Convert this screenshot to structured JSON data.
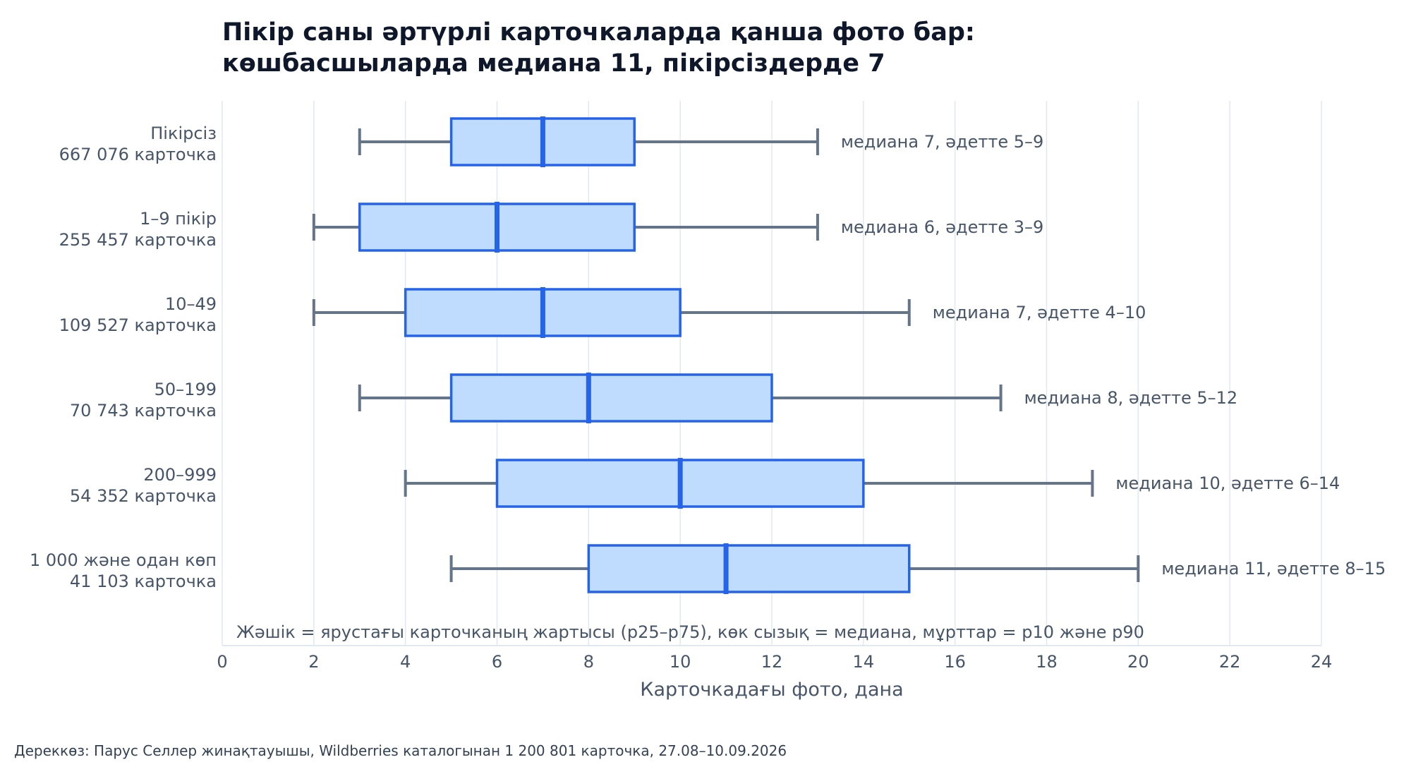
{
  "title_line1": "Пікір саны әртүрлі карточкаларда қанша фото бар:",
  "title_line2": "көшбасшыларда медиана 11, пікірсіздерде 7",
  "source": "Дереккөз: Парус Селлер жинақтауышы, Wildberries каталогынан 1 200 801 карточка, 27.08–10.09.2026",
  "chart_data": {
    "type": "boxplot",
    "orientation": "horizontal",
    "xlabel": "Карточкадағы фото, дана",
    "ylabel": "",
    "xlim": [
      0,
      24
    ],
    "xticks": [
      0,
      2,
      4,
      6,
      8,
      10,
      12,
      14,
      16,
      18,
      20,
      22,
      24
    ],
    "grid": "vertical",
    "note": "Жәшік = ярустағы карточканың жартысы (p25–p75), көк сызық = медиана, мұрттар = p10 және p90",
    "colors": {
      "box_fill": "#bfdbfe",
      "box_stroke": "#2563eb",
      "median": "#2563eb",
      "whisker": "#64748b",
      "grid": "#e2e8f0",
      "axis_text": "#475569",
      "annotation_text": "#475569"
    },
    "categories": [
      {
        "name": "Пікірсіз",
        "count": "667 076 карточка",
        "p10": 3,
        "p25": 5,
        "median": 7,
        "p75": 9,
        "p90": 13,
        "annotation": "медиана 7, әдетте 5–9"
      },
      {
        "name": "1–9 пікір",
        "count": "255 457 карточка",
        "p10": 2,
        "p25": 3,
        "median": 6,
        "p75": 9,
        "p90": 13,
        "annotation": "медиана 6, әдетте 3–9"
      },
      {
        "name": "10–49",
        "count": "109 527 карточка",
        "p10": 2,
        "p25": 4,
        "median": 7,
        "p75": 10,
        "p90": 15,
        "annotation": "медиана 7, әдетте 4–10"
      },
      {
        "name": "50–199",
        "count": "70 743 карточка",
        "p10": 3,
        "p25": 5,
        "median": 8,
        "p75": 12,
        "p90": 17,
        "annotation": "медиана 8, әдетте 5–12"
      },
      {
        "name": "200–999",
        "count": "54 352 карточка",
        "p10": 4,
        "p25": 6,
        "median": 10,
        "p75": 14,
        "p90": 19,
        "annotation": "медиана 10, әдетте 6–14"
      },
      {
        "name": "1 000 және одан көп",
        "count": "41 103 карточка",
        "p10": 5,
        "p25": 8,
        "median": 11,
        "p75": 15,
        "p90": 20,
        "annotation": "медиана 11, әдетте 8–15"
      }
    ]
  }
}
